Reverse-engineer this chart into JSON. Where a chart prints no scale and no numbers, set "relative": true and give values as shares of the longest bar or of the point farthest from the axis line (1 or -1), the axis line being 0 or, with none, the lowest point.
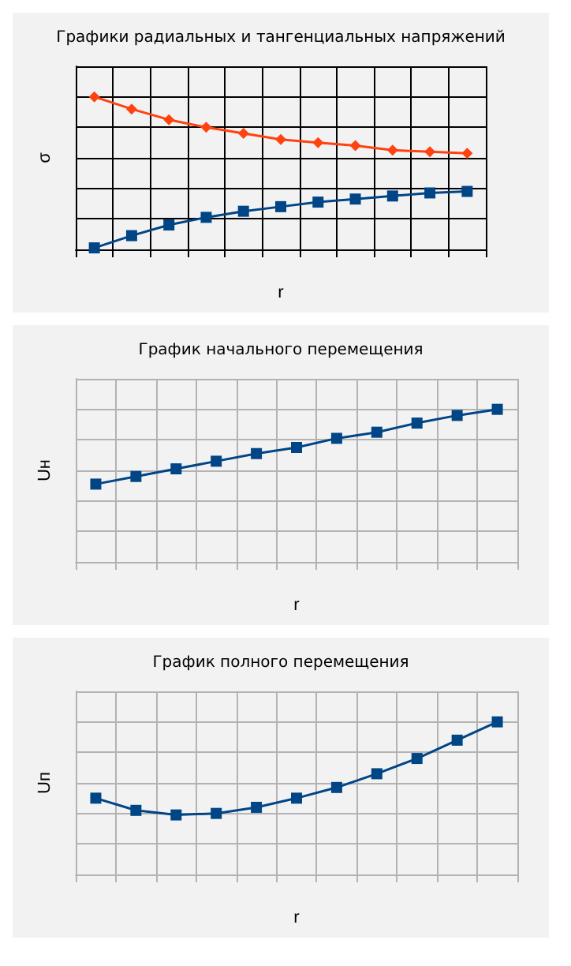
{
  "chart_data": [
    {
      "type": "line",
      "title": "Графики радиальных и тангенциальных напряжений",
      "xlabel": "r",
      "ylabel": "σ",
      "relative": true,
      "grid": true,
      "line_style": "solid",
      "categories": [
        null,
        null,
        null,
        null,
        null,
        null,
        null,
        null,
        null,
        null,
        null
      ],
      "series": [
        {
          "color": "#004586",
          "marker": "square",
          "values": [
            0.01,
            0.09,
            0.16,
            0.21,
            0.25,
            0.28,
            0.31,
            0.33,
            0.35,
            0.37,
            0.38
          ]
        },
        {
          "color": "#ff420e",
          "marker": "diamond",
          "values": [
            1,
            0.92,
            0.85,
            0.8,
            0.76,
            0.72,
            0.7,
            0.68,
            0.65,
            0.64,
            0.63
          ]
        }
      ]
    },
    {
      "type": "line",
      "title": "График начального перемещения",
      "xlabel": "r",
      "ylabel": "Uн",
      "relative": true,
      "grid": true,
      "marker": "square",
      "line_style": "solid",
      "categories": [
        null,
        null,
        null,
        null,
        null,
        null,
        null,
        null,
        null,
        null,
        null
      ],
      "series": [
        {
          "color": "#004586",
          "values": [
            0.51,
            0.56,
            0.61,
            0.66,
            0.71,
            0.75,
            0.81,
            0.85,
            0.91,
            0.96,
            1
          ]
        }
      ]
    },
    {
      "type": "line",
      "title": "График полного перемещения",
      "xlabel": "r",
      "ylabel": "Uп",
      "relative": true,
      "grid": true,
      "marker": "square",
      "line_style": "solid",
      "categories": [
        null,
        null,
        null,
        null,
        null,
        null,
        null,
        null,
        null,
        null,
        null
      ],
      "series": [
        {
          "color": "#004586",
          "values": [
            0.5,
            0.42,
            0.39,
            0.4,
            0.44,
            0.5,
            0.57,
            0.66,
            0.76,
            0.88,
            1
          ]
        }
      ]
    }
  ]
}
